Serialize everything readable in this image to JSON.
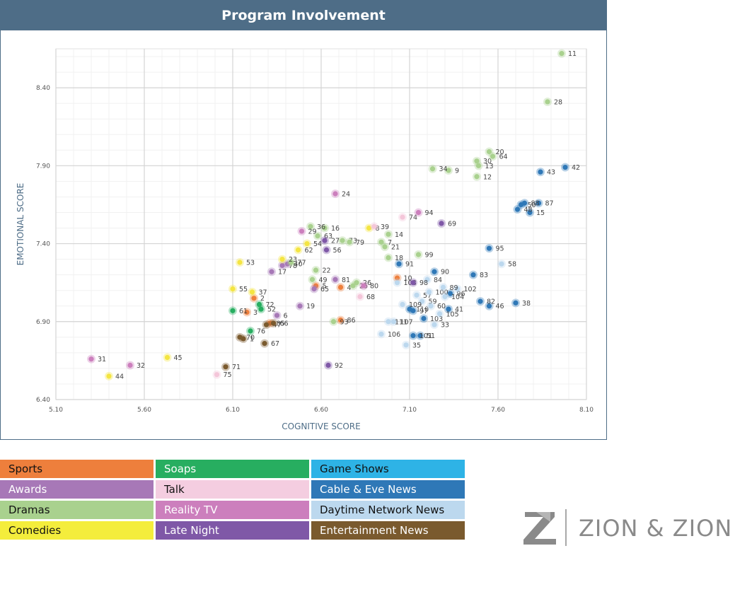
{
  "chart_data": {
    "type": "scatter",
    "title": "Program Involvement",
    "xlabel": "COGNITIVE SCORE",
    "ylabel": "EMOTIONAL SCORE",
    "xlim": [
      5.1,
      8.1
    ],
    "ylim": [
      6.4,
      8.65
    ],
    "xticks": [
      "5.10",
      "5.60",
      "6.10",
      "6.60",
      "7.10",
      "7.60",
      "8.10"
    ],
    "yticks": [
      "6.40",
      "6.90",
      "7.40",
      "7.90",
      "8.40"
    ],
    "grid": true,
    "series": [
      {
        "name": "Sports",
        "color": "#ee7f3c",
        "points": [
          {
            "id": "2",
            "x": 6.22,
            "y": 7.05
          },
          {
            "id": "3",
            "x": 6.18,
            "y": 6.96
          },
          {
            "id": "4",
            "x": 6.71,
            "y": 7.12
          },
          {
            "id": "5",
            "x": 6.57,
            "y": 7.13
          },
          {
            "id": "10",
            "x": 7.03,
            "y": 7.18
          },
          {
            "id": "85",
            "x": 6.31,
            "y": 6.89
          },
          {
            "id": "86",
            "x": 6.71,
            "y": 6.91
          }
        ]
      },
      {
        "name": "Awards",
        "color": "#a778b7",
        "points": [
          {
            "id": "6",
            "x": 6.35,
            "y": 6.94
          },
          {
            "id": "17",
            "x": 6.32,
            "y": 7.22
          },
          {
            "id": "19",
            "x": 6.48,
            "y": 7.0
          },
          {
            "id": "40",
            "x": 6.41,
            "y": 7.27
          },
          {
            "id": "65",
            "x": 6.56,
            "y": 7.11
          },
          {
            "id": "78",
            "x": 6.38,
            "y": 7.26
          },
          {
            "id": "81",
            "x": 6.68,
            "y": 7.17
          }
        ]
      },
      {
        "name": "Dramas",
        "color": "#a9d18e",
        "points": [
          {
            "id": "7",
            "x": 6.94,
            "y": 7.41
          },
          {
            "id": "9",
            "x": 7.32,
            "y": 7.87
          },
          {
            "id": "11",
            "x": 7.96,
            "y": 8.62
          },
          {
            "id": "12",
            "x": 7.48,
            "y": 7.83
          },
          {
            "id": "13",
            "x": 7.49,
            "y": 7.9
          },
          {
            "id": "14",
            "x": 6.98,
            "y": 7.46
          },
          {
            "id": "16",
            "x": 6.62,
            "y": 7.5
          },
          {
            "id": "18",
            "x": 6.98,
            "y": 7.31
          },
          {
            "id": "20",
            "x": 7.55,
            "y": 7.99
          },
          {
            "id": "21",
            "x": 6.96,
            "y": 7.38
          },
          {
            "id": "22",
            "x": 6.57,
            "y": 7.23
          },
          {
            "id": "25",
            "x": 6.78,
            "y": 7.13
          },
          {
            "id": "26",
            "x": 6.8,
            "y": 7.15
          },
          {
            "id": "28",
            "x": 7.88,
            "y": 8.31
          },
          {
            "id": "30",
            "x": 7.48,
            "y": 7.93
          },
          {
            "id": "34",
            "x": 7.23,
            "y": 7.88
          },
          {
            "id": "36",
            "x": 6.54,
            "y": 7.51
          },
          {
            "id": "49",
            "x": 6.55,
            "y": 7.17
          },
          {
            "id": "63",
            "x": 6.58,
            "y": 7.45
          },
          {
            "id": "64",
            "x": 7.57,
            "y": 7.96
          },
          {
            "id": "73",
            "x": 6.72,
            "y": 7.42
          },
          {
            "id": "79",
            "x": 6.76,
            "y": 7.41
          },
          {
            "id": "93",
            "x": 6.67,
            "y": 6.9
          },
          {
            "id": "99",
            "x": 7.15,
            "y": 7.33
          },
          {
            "id": "77",
            "x": 6.43,
            "y": 7.28
          }
        ]
      },
      {
        "name": "Comedies",
        "color": "#f4e542",
        "points": [
          {
            "id": "23",
            "x": 6.38,
            "y": 7.3
          },
          {
            "id": "37",
            "x": 6.21,
            "y": 7.09
          },
          {
            "id": "44",
            "x": 5.4,
            "y": 6.55
          },
          {
            "id": "45",
            "x": 5.73,
            "y": 6.67
          },
          {
            "id": "53",
            "x": 6.14,
            "y": 7.28
          },
          {
            "id": "54",
            "x": 6.52,
            "y": 7.4
          },
          {
            "id": "55",
            "x": 6.1,
            "y": 7.11
          },
          {
            "id": "62",
            "x": 6.47,
            "y": 7.36
          },
          {
            "id": "8",
            "x": 6.87,
            "y": 7.5
          }
        ]
      },
      {
        "name": "Soaps",
        "color": "#27ae60",
        "points": [
          {
            "id": "61",
            "x": 6.1,
            "y": 6.97
          },
          {
            "id": "72",
            "x": 6.25,
            "y": 7.01
          },
          {
            "id": "52",
            "x": 6.26,
            "y": 6.98
          },
          {
            "id": "76",
            "x": 6.2,
            "y": 6.84
          }
        ]
      },
      {
        "name": "Talk",
        "color": "#f4c6d9",
        "points": [
          {
            "id": "39",
            "x": 6.9,
            "y": 7.51
          },
          {
            "id": "68",
            "x": 6.82,
            "y": 7.06
          },
          {
            "id": "74",
            "x": 7.06,
            "y": 7.57
          },
          {
            "id": "75",
            "x": 6.01,
            "y": 6.56
          }
        ]
      },
      {
        "name": "Cable & Eve News",
        "color": "#2f78b7",
        "points": [
          {
            "id": "15",
            "x": 7.78,
            "y": 7.6
          },
          {
            "id": "38",
            "x": 7.7,
            "y": 7.02
          },
          {
            "id": "42",
            "x": 7.98,
            "y": 7.89
          },
          {
            "id": "43",
            "x": 7.84,
            "y": 7.86
          },
          {
            "id": "46",
            "x": 7.55,
            "y": 7.0
          },
          {
            "id": "48",
            "x": 7.71,
            "y": 7.62
          },
          {
            "id": "50",
            "x": 7.73,
            "y": 7.65
          },
          {
            "id": "82",
            "x": 7.5,
            "y": 7.03
          },
          {
            "id": "83",
            "x": 7.46,
            "y": 7.2
          },
          {
            "id": "87",
            "x": 7.83,
            "y": 7.66
          },
          {
            "id": "88",
            "x": 7.75,
            "y": 7.66
          },
          {
            "id": "90",
            "x": 7.24,
            "y": 7.22
          },
          {
            "id": "91",
            "x": 7.04,
            "y": 7.27
          },
          {
            "id": "95",
            "x": 7.55,
            "y": 7.37
          },
          {
            "id": "96",
            "x": 7.33,
            "y": 7.08
          },
          {
            "id": "41",
            "x": 7.32,
            "y": 6.98
          },
          {
            "id": "103",
            "x": 7.18,
            "y": 6.92
          },
          {
            "id": "51",
            "x": 7.16,
            "y": 6.81
          },
          {
            "id": "110",
            "x": 7.1,
            "y": 6.98
          },
          {
            "id": "97",
            "x": 7.12,
            "y": 6.97
          },
          {
            "id": "101",
            "x": 7.12,
            "y": 6.81
          }
        ]
      },
      {
        "name": "Daytime Network News",
        "color": "#bcd8ee",
        "points": [
          {
            "id": "57",
            "x": 7.14,
            "y": 7.07
          },
          {
            "id": "58",
            "x": 7.62,
            "y": 7.27
          },
          {
            "id": "59",
            "x": 7.17,
            "y": 7.03
          },
          {
            "id": "60",
            "x": 7.22,
            "y": 7.0
          },
          {
            "id": "33",
            "x": 7.24,
            "y": 6.88
          },
          {
            "id": "35",
            "x": 7.08,
            "y": 6.75
          },
          {
            "id": "100",
            "x": 7.21,
            "y": 7.09
          },
          {
            "id": "102",
            "x": 7.37,
            "y": 7.11
          },
          {
            "id": "104",
            "x": 7.3,
            "y": 7.06
          },
          {
            "id": "105",
            "x": 7.27,
            "y": 6.95
          },
          {
            "id": "106",
            "x": 6.94,
            "y": 6.82
          },
          {
            "id": "107",
            "x": 7.01,
            "y": 6.9
          },
          {
            "id": "108",
            "x": 7.03,
            "y": 7.15
          },
          {
            "id": "109",
            "x": 7.06,
            "y": 7.01
          },
          {
            "id": "111",
            "x": 6.98,
            "y": 6.9
          },
          {
            "id": "84",
            "x": 7.2,
            "y": 7.17
          },
          {
            "id": "89",
            "x": 7.29,
            "y": 7.12
          }
        ]
      },
      {
        "name": "Reality TV",
        "color": "#cc7fbd",
        "points": [
          {
            "id": "24",
            "x": 6.68,
            "y": 7.72
          },
          {
            "id": "29",
            "x": 6.49,
            "y": 7.48
          },
          {
            "id": "31",
            "x": 5.3,
            "y": 6.66
          },
          {
            "id": "32",
            "x": 5.52,
            "y": 6.62
          },
          {
            "id": "80",
            "x": 6.84,
            "y": 7.13
          },
          {
            "id": "94",
            "x": 7.15,
            "y": 7.6
          }
        ]
      },
      {
        "name": "Late Night",
        "color": "#7f58a7",
        "points": [
          {
            "id": "27",
            "x": 6.62,
            "y": 7.42
          },
          {
            "id": "56",
            "x": 6.63,
            "y": 7.36
          },
          {
            "id": "69",
            "x": 7.28,
            "y": 7.53
          },
          {
            "id": "98",
            "x": 7.12,
            "y": 7.15
          },
          {
            "id": "92",
            "x": 6.64,
            "y": 6.62
          }
        ]
      },
      {
        "name": "Entertainment News",
        "color": "#7a5a2e",
        "points": [
          {
            "id": "1",
            "x": 6.16,
            "y": 6.79
          },
          {
            "id": "47",
            "x": 6.29,
            "y": 6.88
          },
          {
            "id": "66",
            "x": 6.33,
            "y": 6.89
          },
          {
            "id": "67",
            "x": 6.28,
            "y": 6.76
          },
          {
            "id": "70",
            "x": 6.14,
            "y": 6.8
          },
          {
            "id": "71",
            "x": 6.06,
            "y": 6.61
          }
        ]
      }
    ]
  },
  "legend": [
    {
      "label": "Sports",
      "bg": "#ee7f3c",
      "fg": "#111111"
    },
    {
      "label": "Soaps",
      "bg": "#27ae60",
      "fg": "#ffffff"
    },
    {
      "label": "Game Shows",
      "bg": "#2eb3e6",
      "fg": "#111111"
    },
    {
      "label": "Awards",
      "bg": "#a778b7",
      "fg": "#ffffff"
    },
    {
      "label": "Talk",
      "bg": "#f4cde0",
      "fg": "#111111"
    },
    {
      "label": "Cable & Eve News",
      "bg": "#2f78b7",
      "fg": "#ffffff"
    },
    {
      "label": "Dramas",
      "bg": "#a9d18e",
      "fg": "#111111"
    },
    {
      "label": "Reality TV",
      "bg": "#cc7fbd",
      "fg": "#ffffff"
    },
    {
      "label": "Daytime Network News",
      "bg": "#bcd8ee",
      "fg": "#111111"
    },
    {
      "label": "Comedies",
      "bg": "#f4ed3c",
      "fg": "#111111"
    },
    {
      "label": "Late Night",
      "bg": "#7f58a7",
      "fg": "#ffffff"
    },
    {
      "label": "Entertainment News",
      "bg": "#7a5a2e",
      "fg": "#ffffff"
    }
  ],
  "brand": {
    "name": "ZION & ZION",
    "logo_color": "#8a8a8a"
  }
}
